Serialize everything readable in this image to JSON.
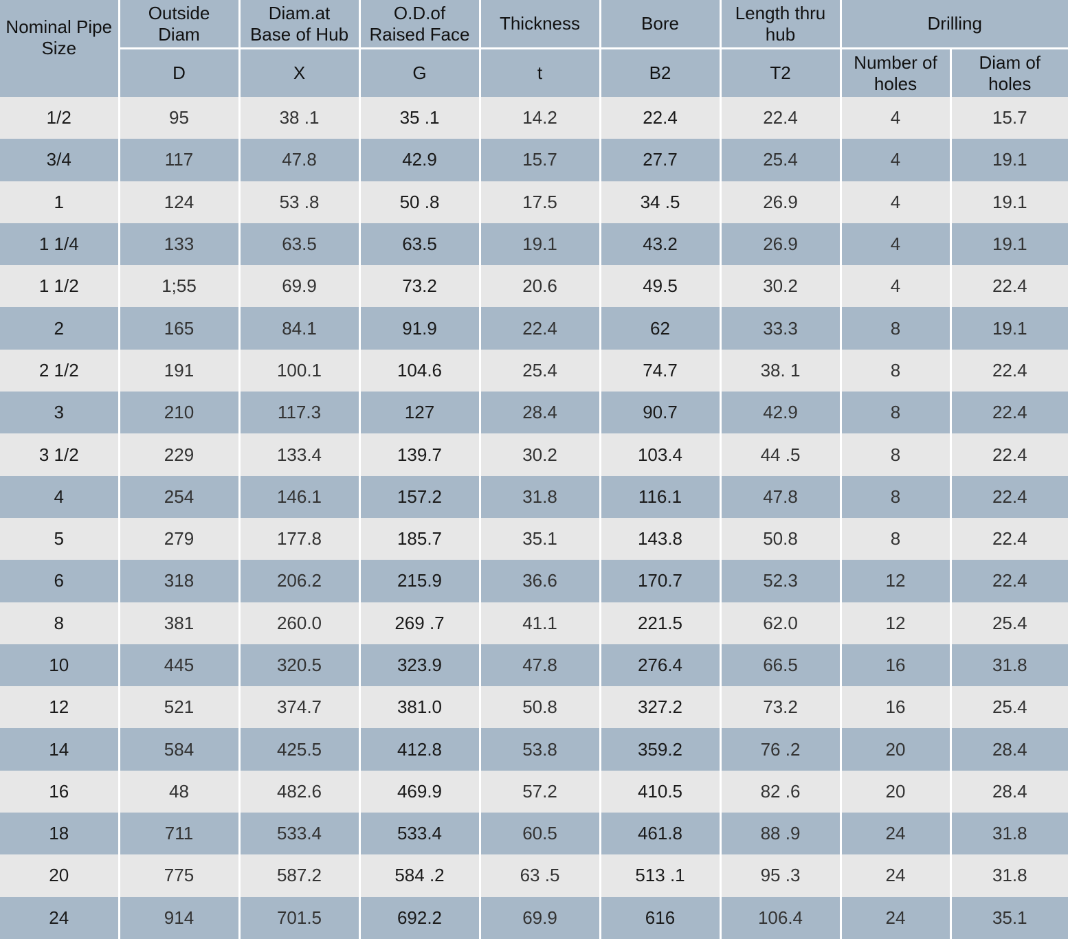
{
  "table": {
    "header": {
      "nominal_pipe_size": "Nominal Pipe\nSize",
      "outside_diam": "Outside\nDiam",
      "diam_base_hub": "Diam.at\nBase of Hub",
      "od_raised_face": "O.D.of\nRaised Face",
      "thickness": "Thickness",
      "bore": "Bore",
      "length_thru_hub": "Length  thru\nhub",
      "drilling": "Drilling",
      "sym_d": "D",
      "sym_x": "X",
      "sym_g": "G",
      "sym_t": "t",
      "sym_b2": "B2",
      "sym_t2": "T2",
      "number_of_holes": "Number of\nholes",
      "diam_of_holes": "Diam of\nholes"
    },
    "rows": [
      {
        "size": "1/2",
        "d": "95",
        "x": "38 .1",
        "g": "35 .1",
        "t": "14.2",
        "b2": "22.4",
        "t2": "22.4",
        "holes": "4",
        "hole_diam": "15.7"
      },
      {
        "size": "3/4",
        "d": "117",
        "x": "47.8",
        "g": "42.9",
        "t": "15.7",
        "b2": "27.7",
        "t2": "25.4",
        "holes": "4",
        "hole_diam": "19.1"
      },
      {
        "size": "1",
        "d": "124",
        "x": "53 .8",
        "g": "50 .8",
        "t": "17.5",
        "b2": "34 .5",
        "t2": "26.9",
        "holes": "4",
        "hole_diam": "19.1"
      },
      {
        "size": "1 1/4",
        "d": "133",
        "x": "63.5",
        "g": "63.5",
        "t": "19.1",
        "b2": "43.2",
        "t2": "26.9",
        "holes": "4",
        "hole_diam": "19.1"
      },
      {
        "size": "1 1/2",
        "d": "1;55",
        "x": "69.9",
        "g": "73.2",
        "t": "20.6",
        "b2": "49.5",
        "t2": "30.2",
        "holes": "4",
        "hole_diam": "22.4"
      },
      {
        "size": "2",
        "d": "165",
        "x": "84.1",
        "g": "91.9",
        "t": "22.4",
        "b2": "62",
        "t2": "33.3",
        "holes": "8",
        "hole_diam": "19.1"
      },
      {
        "size": "2 1/2",
        "d": "191",
        "x": "100.1",
        "g": "104.6",
        "t": "25.4",
        "b2": "74.7",
        "t2": "38. 1",
        "holes": "8",
        "hole_diam": "22.4"
      },
      {
        "size": "3",
        "d": "210",
        "x": "117.3",
        "g": "127",
        "t": "28.4",
        "b2": "90.7",
        "t2": "42.9",
        "holes": "8",
        "hole_diam": "22.4"
      },
      {
        "size": "3 1/2",
        "d": "229",
        "x": "133.4",
        "g": "139.7",
        "t": "30.2",
        "b2": "103.4",
        "t2": "44 .5",
        "holes": "8",
        "hole_diam": "22.4"
      },
      {
        "size": "4",
        "d": "254",
        "x": "146.1",
        "g": "157.2",
        "t": "31.8",
        "b2": "116.1",
        "t2": "47.8",
        "holes": "8",
        "hole_diam": "22.4"
      },
      {
        "size": "5",
        "d": "279",
        "x": "177.8",
        "g": "185.7",
        "t": "35.1",
        "b2": "143.8",
        "t2": "50.8",
        "holes": "8",
        "hole_diam": "22.4"
      },
      {
        "size": "6",
        "d": "318",
        "x": "206.2",
        "g": "215.9",
        "t": "36.6",
        "b2": "170.7",
        "t2": "52.3",
        "holes": "12",
        "hole_diam": "22.4"
      },
      {
        "size": "8",
        "d": "381",
        "x": "260.0",
        "g": "269 .7",
        "t": "41.1",
        "b2": "221.5",
        "t2": "62.0",
        "holes": "12",
        "hole_diam": "25.4"
      },
      {
        "size": "10",
        "d": "445",
        "x": "320.5",
        "g": "323.9",
        "t": "47.8",
        "b2": "276.4",
        "t2": "66.5",
        "holes": "16",
        "hole_diam": "31.8"
      },
      {
        "size": "12",
        "d": "521",
        "x": "374.7",
        "g": "381.0",
        "t": "50.8",
        "b2": "327.2",
        "t2": "73.2",
        "holes": "16",
        "hole_diam": "25.4"
      },
      {
        "size": "14",
        "d": "584",
        "x": "425.5",
        "g": "412.8",
        "t": "53.8",
        "b2": "359.2",
        "t2": "76 .2",
        "holes": "20",
        "hole_diam": "28.4"
      },
      {
        "size": "16",
        "d": "48",
        "x": "482.6",
        "g": "469.9",
        "t": "57.2",
        "b2": "410.5",
        "t2": "82 .6",
        "holes": "20",
        "hole_diam": "28.4"
      },
      {
        "size": "18",
        "d": "711",
        "x": "533.4",
        "g": "533.4",
        "t": "60.5",
        "b2": "461.8",
        "t2": "88 .9",
        "holes": "24",
        "hole_diam": "31.8"
      },
      {
        "size": "20",
        "d": "775",
        "x": "587.2",
        "g": "584 .2",
        "t": "63 .5",
        "b2": "513 .1",
        "t2": "95 .3",
        "holes": "24",
        "hole_diam": "31.8"
      },
      {
        "size": "24",
        "d": "914",
        "x": "701.5",
        "g": "692.2",
        "t": "69.9",
        "b2": "616",
        "t2": "106.4",
        "holes": "24",
        "hole_diam": "35.1"
      }
    ]
  }
}
